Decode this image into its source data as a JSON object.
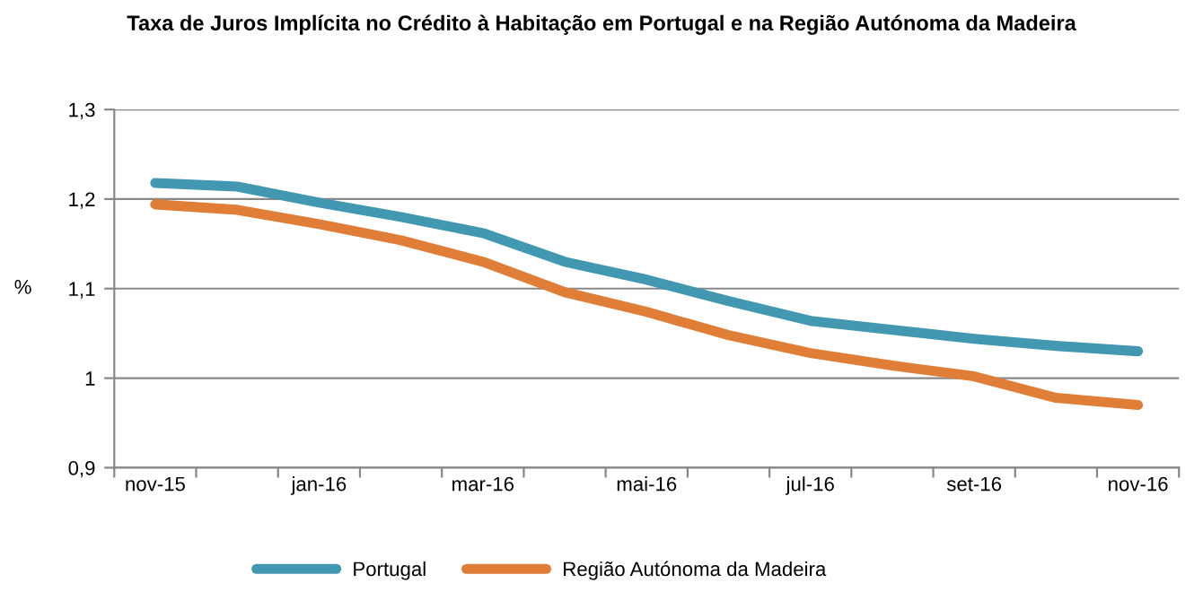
{
  "chart_data": {
    "type": "line",
    "title": "Taxa de Juros Implícita no Crédito à Habitação em Portugal e na Região Autónoma da Madeira",
    "ylabel": "%",
    "categories": [
      "nov-15",
      null,
      "jan-16",
      null,
      "mar-16",
      null,
      "mai-16",
      null,
      "jul-16",
      null,
      "set-16",
      null,
      "nov-16"
    ],
    "series": [
      {
        "name": "Portugal",
        "color": "#4198b0",
        "values": [
          1.218,
          1.214,
          1.196,
          1.18,
          1.162,
          1.13,
          1.11,
          1.086,
          1.064,
          1.054,
          1.044,
          1.036,
          1.03
        ]
      },
      {
        "name": "Região Autónoma da Madeira",
        "color": "#e07e37",
        "values": [
          1.194,
          1.188,
          1.172,
          1.154,
          1.13,
          1.096,
          1.074,
          1.048,
          1.028,
          1.014,
          1.002,
          0.978,
          0.97
        ]
      }
    ],
    "ylim": [
      0.9,
      1.3
    ],
    "yticks": [
      {
        "value": 0.9,
        "label": "0,9"
      },
      1,
      {
        "value": 1.1,
        "label": "1,1"
      },
      {
        "value": 1.2,
        "label": "1,2"
      },
      {
        "value": 1.3,
        "label": "1,3"
      }
    ],
    "grid": "y",
    "legend": "bottom",
    "marker": "none",
    "line_style": "solid"
  }
}
